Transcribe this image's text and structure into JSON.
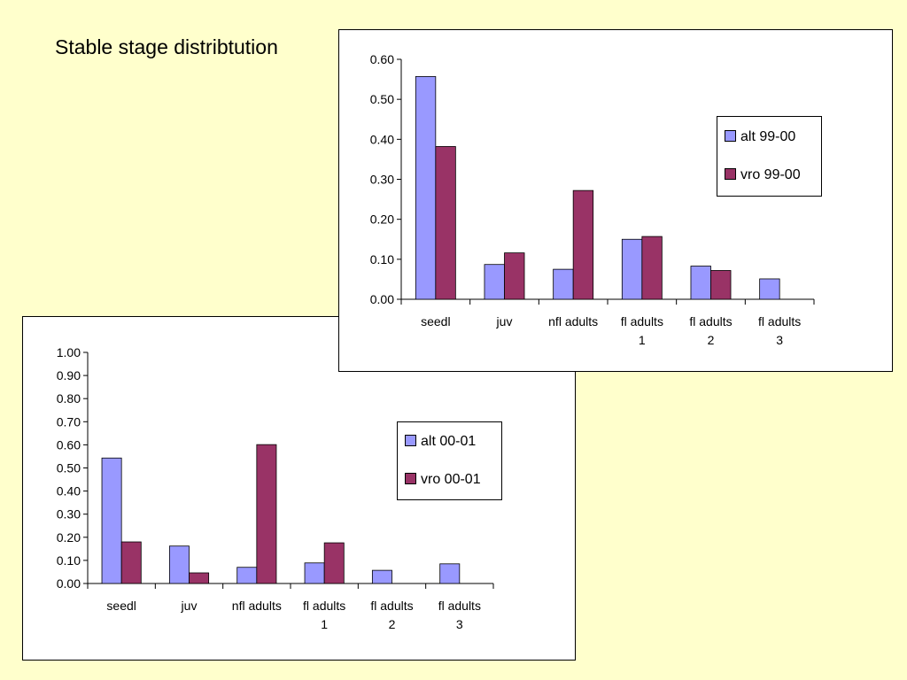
{
  "slide": {
    "title": "Stable stage distribtution"
  },
  "colors": {
    "series_alt": "#9999ff",
    "series_vro": "#993366",
    "background": "#ffffcc"
  },
  "chart_data": [
    {
      "type": "bar",
      "categories": [
        [
          "seedl"
        ],
        [
          "juv"
        ],
        [
          "nfl adults"
        ],
        [
          "fl adults",
          "1"
        ],
        [
          "fl adults",
          "2"
        ],
        [
          "fl adults",
          "3"
        ]
      ],
      "series": [
        {
          "name": "alt 99-00",
          "values": [
            0.557,
            0.087,
            0.075,
            0.15,
            0.083,
            0.051
          ]
        },
        {
          "name": "vro 99-00",
          "values": [
            0.382,
            0.116,
            0.272,
            0.157,
            0.072,
            0.0
          ]
        }
      ],
      "ylim": [
        0,
        0.6
      ],
      "yticks": [
        "0.00",
        "0.10",
        "0.20",
        "0.30",
        "0.40",
        "0.50",
        "0.60"
      ],
      "legend": "right",
      "grid": false,
      "title": "",
      "xlabel": "",
      "ylabel": ""
    },
    {
      "type": "bar",
      "categories": [
        [
          "seedl"
        ],
        [
          "juv"
        ],
        [
          "nfl adults"
        ],
        [
          "fl adults",
          "1"
        ],
        [
          "fl adults",
          "2"
        ],
        [
          "fl adults",
          "3"
        ]
      ],
      "series": [
        {
          "name": "alt 00-01",
          "values": [
            0.543,
            0.162,
            0.07,
            0.089,
            0.057,
            0.085
          ]
        },
        {
          "name": "vro 00-01",
          "values": [
            0.18,
            0.046,
            0.601,
            0.176,
            0.0,
            0.0
          ]
        }
      ],
      "ylim": [
        0,
        1.0
      ],
      "yticks": [
        "0.00",
        "0.10",
        "0.20",
        "0.30",
        "0.40",
        "0.50",
        "0.60",
        "0.70",
        "0.80",
        "0.90",
        "1.00"
      ],
      "legend": "right",
      "grid": false,
      "title": "",
      "xlabel": "",
      "ylabel": ""
    }
  ]
}
